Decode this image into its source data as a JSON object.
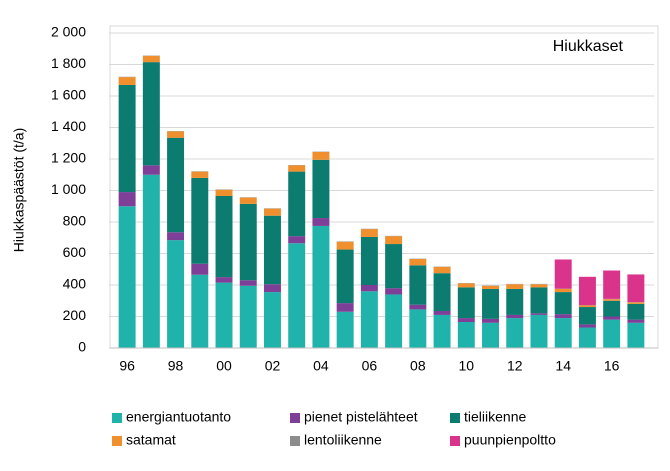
{
  "chart_data": {
    "type": "stacked-bar",
    "title": "Hiukkaset",
    "y_label": "Hiukkaspäästöt (t/a)",
    "categories": [
      "96",
      null,
      "98",
      null,
      "00",
      null,
      "02",
      null,
      "04",
      null,
      "06",
      null,
      "08",
      null,
      "10",
      null,
      "12",
      null,
      "14",
      null,
      "16",
      null
    ],
    "series": [
      {
        "name": "energiantuotanto",
        "color": "#20b3ab",
        "values": [
          900,
          1100,
          685,
          465,
          415,
          395,
          355,
          665,
          775,
          230,
          360,
          340,
          245,
          210,
          165,
          160,
          190,
          210,
          190,
          130,
          180,
          160
        ]
      },
      {
        "name": "pienet pistelähteet",
        "color": "#7d3f98",
        "values": [
          90,
          60,
          50,
          70,
          35,
          35,
          50,
          45,
          50,
          55,
          40,
          40,
          30,
          25,
          25,
          25,
          20,
          10,
          25,
          20,
          20,
          20
        ]
      },
      {
        "name": "tieliikenne",
        "color": "#0c7b70",
        "values": [
          680,
          655,
          600,
          545,
          515,
          485,
          435,
          410,
          370,
          340,
          305,
          280,
          250,
          240,
          195,
          190,
          165,
          165,
          140,
          110,
          100,
          100
        ]
      },
      {
        "name": "satamat",
        "color": "#ef8f2d",
        "values": [
          50,
          40,
          40,
          40,
          40,
          40,
          45,
          40,
          50,
          50,
          50,
          50,
          40,
          40,
          25,
          20,
          30,
          20,
          20,
          10,
          10,
          10
        ]
      },
      {
        "name": "lentoliikenne",
        "color": "#8c8c8c",
        "values": [
          2,
          2,
          2,
          2,
          2,
          2,
          2,
          2,
          2,
          2,
          2,
          2,
          2,
          2,
          2,
          2,
          2,
          2,
          2,
          2,
          2,
          2
        ]
      },
      {
        "name": "puunpienpoltto",
        "color": "#d9338c",
        "values": [
          null,
          null,
          null,
          null,
          null,
          null,
          null,
          null,
          null,
          null,
          null,
          null,
          null,
          null,
          null,
          null,
          null,
          null,
          185,
          180,
          180,
          175
        ]
      }
    ],
    "ylim": [
      0,
      2000
    ],
    "yticks": [
      0,
      200,
      400,
      600,
      800,
      {
        "value": 1000,
        "label": "1 000"
      },
      {
        "value": 1200,
        "label": "1 200"
      },
      {
        "value": 1400,
        "label": "1 400"
      },
      {
        "value": 1600,
        "label": "1 600"
      },
      {
        "value": 1800,
        "label": "1 800"
      },
      {
        "value": 2000,
        "label": "2 000"
      }
    ],
    "grid": true
  }
}
